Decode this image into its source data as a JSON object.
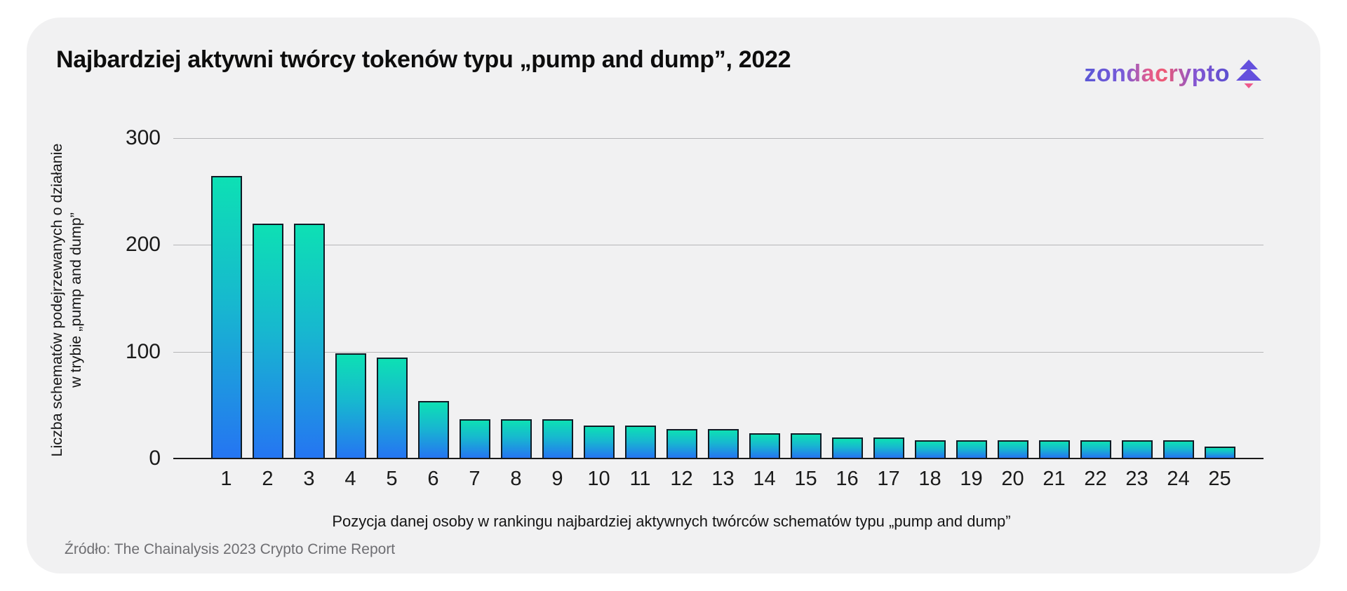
{
  "header": {
    "title": "Najbardziej aktywni twórcy tokenów typu „pump and dump”, 2022",
    "brand": "zondacrypto"
  },
  "chart_data": {
    "type": "bar",
    "title": "Najbardziej aktywni twórcy tokenów typu „pump and dump”, 2022",
    "xlabel": "Pozycja danej osoby w rankingu najbardziej aktywnych twórców schematów typu „pump and dump”",
    "ylabel": "Liczba schematów podejrzewanych o działanie w trybie „pump and dump”",
    "ylabel_lines": [
      "Liczba schematów podejrzewanych o działanie",
      "w trybie „pump and dump”"
    ],
    "categories": [
      "1",
      "2",
      "3",
      "4",
      "5",
      "6",
      "7",
      "8",
      "9",
      "10",
      "11",
      "12",
      "13",
      "14",
      "15",
      "16",
      "17",
      "18",
      "19",
      "20",
      "21",
      "22",
      "23",
      "24",
      "25"
    ],
    "values": [
      264,
      219,
      219,
      97,
      93,
      52,
      35,
      35,
      35,
      29,
      29,
      26,
      26,
      22,
      22,
      18,
      18,
      15,
      15,
      15,
      15,
      15,
      15,
      15,
      9
    ],
    "yticks": [
      300,
      200,
      100,
      0
    ],
    "ylim": [
      0,
      300
    ],
    "grid": true,
    "legend": "none",
    "source": "Źródło: The Chainalysis 2023 Crypto Crime Report",
    "colors": {
      "bar_top": "#0de0b4",
      "bar_bottom": "#2575f2",
      "bar_border": "#0f1c26",
      "gridline": "#b6b6b8",
      "axis_line": "#1a1a1a",
      "card_background": "#f1f1f2",
      "page_background": "#ffffff",
      "text": "#0d0d0d",
      "source_text": "#6e6e72",
      "logo_purple": "#5b51d3",
      "logo_pink": "#ee5a78"
    }
  }
}
